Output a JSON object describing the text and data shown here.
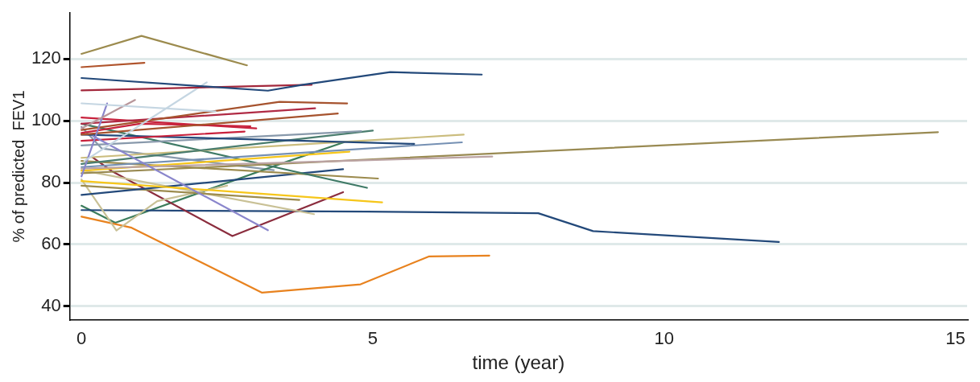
{
  "chart_data": {
    "type": "line",
    "xlabel": "time (year)",
    "ylabel": "% of predicted  FEV1",
    "xlim": [
      -0.2,
      15.2
    ],
    "ylim": [
      35.6,
      134.8
    ],
    "xticks": [
      0,
      5,
      10,
      15
    ],
    "yticks": [
      40,
      60,
      80,
      100,
      120
    ],
    "grid": "y",
    "legend": false,
    "marker": "none",
    "line_style": "solid",
    "series": [
      {
        "color": "#9c8b4e",
        "x": [
          0,
          1.03,
          2.84
        ],
        "values": [
          121.6,
          127.4,
          117.9
        ]
      },
      {
        "color": "#b0542c",
        "x": [
          0,
          1.08
        ],
        "values": [
          117.3,
          118.7
        ]
      },
      {
        "color": "#23497a",
        "x": [
          0,
          3.2,
          3.8,
          5.3,
          6.87
        ],
        "values": [
          113.8,
          109.7,
          111.6,
          115.7,
          114.9
        ]
      },
      {
        "color": "#a3283c",
        "x": [
          0,
          3.95
        ],
        "values": [
          109.8,
          111.6
        ]
      },
      {
        "color": "#c5d6e2",
        "x": [
          0.05,
          2.15
        ],
        "values": [
          87,
          112.4
        ]
      },
      {
        "color": "#c5d6e2",
        "x": [
          0,
          2.3
        ],
        "values": [
          105.6,
          103
        ]
      },
      {
        "color": "#b8969a",
        "x": [
          0,
          0.92
        ],
        "values": [
          97.5,
          106.7
        ]
      },
      {
        "color": "#8a86cc",
        "x": [
          0,
          0.44
        ],
        "values": [
          82,
          105.6
        ]
      },
      {
        "color": "#8a86cc",
        "x": [
          0.2,
          3.2
        ],
        "values": [
          95,
          64.6
        ]
      },
      {
        "color": "#a6532e",
        "x": [
          0,
          3.4,
          4.56
        ],
        "values": [
          97,
          106.1,
          105.6
        ]
      },
      {
        "color": "#b02a44",
        "x": [
          0,
          4.01
        ],
        "values": [
          99,
          104
        ]
      },
      {
        "color": "#a6532e",
        "x": [
          0,
          4.4
        ],
        "values": [
          95.5,
          102.3
        ]
      },
      {
        "color": "#c8213c",
        "x": [
          0,
          3.0
        ],
        "values": [
          101,
          97.5
        ]
      },
      {
        "color": "#c8213c",
        "x": [
          0,
          1.0,
          2.9
        ],
        "values": [
          96,
          99,
          98.2
        ]
      },
      {
        "color": "#c8213c",
        "x": [
          0,
          2.8
        ],
        "values": [
          93.5,
          96.5
        ]
      },
      {
        "color": "#23497a",
        "x": [
          0,
          5.71
        ],
        "values": [
          95.5,
          92.5
        ]
      },
      {
        "color": "#8899ab",
        "x": [
          0,
          4.8
        ],
        "values": [
          92,
          96.6
        ]
      },
      {
        "color": "#4a7d6e",
        "x": [
          0,
          5.0
        ],
        "values": [
          86,
          96.8
        ]
      },
      {
        "color": "#cbbd7e",
        "x": [
          0,
          6.56
        ],
        "values": [
          88,
          95.5
        ]
      },
      {
        "color": "#7590b3",
        "x": [
          0,
          6.53
        ],
        "values": [
          85,
          93
        ]
      },
      {
        "color": "#bba3a3",
        "x": [
          0,
          7.05
        ],
        "values": [
          84.5,
          88.4
        ]
      },
      {
        "color": "#998a52",
        "x": [
          0,
          14.7
        ],
        "values": [
          83,
          96.3
        ]
      },
      {
        "color": "#f6c61a",
        "x": [
          0,
          4.6
        ],
        "values": [
          83.8,
          90
        ]
      },
      {
        "color": "#f6c61a",
        "x": [
          0,
          5.16
        ],
        "values": [
          80.5,
          73.6
        ]
      },
      {
        "color": "#3f7a66",
        "x": [
          0,
          4.9
        ],
        "values": [
          99,
          78.3
        ]
      },
      {
        "color": "#9c8b4e",
        "x": [
          0,
          5.09
        ],
        "values": [
          87,
          81.3
        ]
      },
      {
        "color": "#23497a",
        "x": [
          0,
          4.49
        ],
        "values": [
          76,
          84.3
        ]
      },
      {
        "color": "#9c8b4e",
        "x": [
          0,
          3.74
        ],
        "values": [
          79,
          74.4
        ]
      },
      {
        "color": "#c9c196",
        "x": [
          0,
          3.99
        ],
        "values": [
          84,
          69.8
        ]
      },
      {
        "color": "#c9c196",
        "x": [
          0,
          0.6,
          1.3,
          2.5
        ],
        "values": [
          81,
          64.5,
          74,
          79
        ]
      },
      {
        "color": "#8b2d3e",
        "x": [
          0.2,
          0.52,
          2.59,
          4.49
        ],
        "values": [
          88,
          83.7,
          62.7,
          76.9
        ]
      },
      {
        "color": "#23497a",
        "x": [
          0,
          4.9,
          7.84,
          8.78,
          11.97
        ],
        "values": [
          71.1,
          70.6,
          70.1,
          64.3,
          60.8
        ]
      },
      {
        "color": "#e8821e",
        "x": [
          0,
          0.86,
          3.1,
          4.79,
          5.96,
          7.0
        ],
        "values": [
          69,
          65.4,
          44.4,
          47.1,
          56.1,
          56.4
        ]
      },
      {
        "color": "#3c7d5c",
        "x": [
          0,
          0.58,
          3.44,
          4.5
        ],
        "values": [
          72.5,
          67,
          86.2,
          93
        ]
      },
      {
        "color": "#8899ab",
        "x": [
          0,
          0.35,
          3.3
        ],
        "values": [
          98,
          91,
          84
        ]
      }
    ]
  }
}
